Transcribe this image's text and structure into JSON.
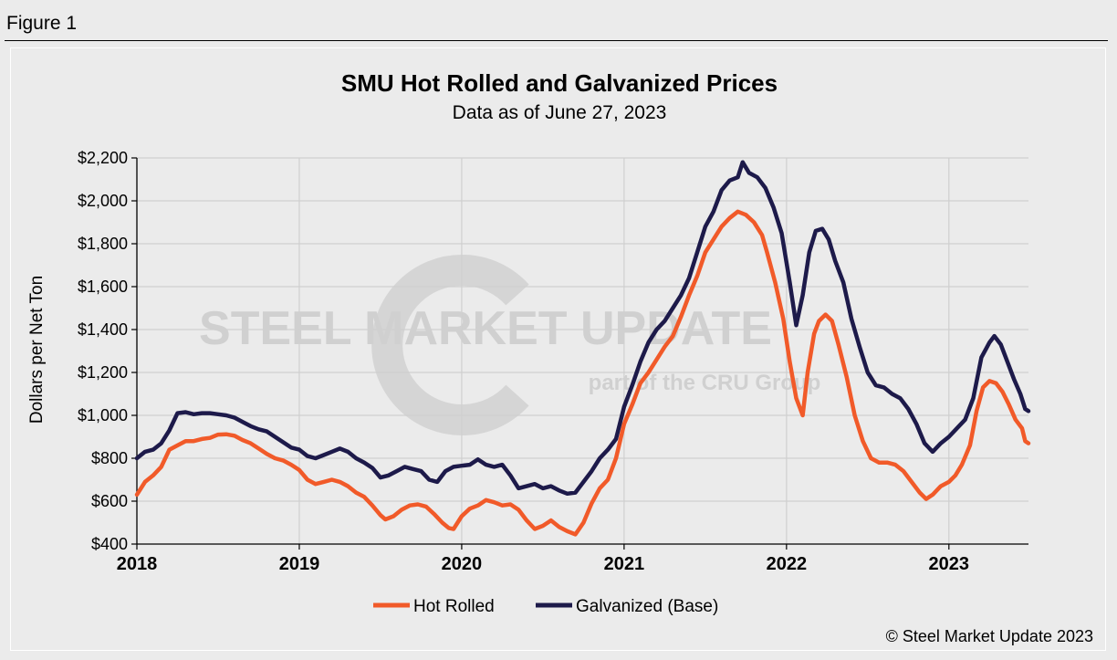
{
  "figure_label": "Figure 1",
  "copyright": "© Steel Market Update 2023",
  "watermark": {
    "main": "STEEL MARKET UPDATE",
    "sub": "part of the CRU Group"
  },
  "colors": {
    "hot_rolled": "#f15a29",
    "galvanized": "#1d1a4a",
    "grid": "#cfcfcf",
    "background": "#ebebeb"
  },
  "chart_data": {
    "type": "line",
    "title": "SMU Hot Rolled and Galvanized Prices",
    "subtitle": "Data as of June 27, 2023",
    "ylabel": "Dollars per Net Ton",
    "xlabel": "",
    "ylim": [
      400,
      2200
    ],
    "yticks": [
      {
        "value": 400,
        "label": "$400"
      },
      {
        "value": 600,
        "label": "$600"
      },
      {
        "value": 800,
        "label": "$800"
      },
      {
        "value": 1000,
        "label": "$1,000"
      },
      {
        "value": 1200,
        "label": "$1,200"
      },
      {
        "value": 1400,
        "label": "$1,400"
      },
      {
        "value": 1600,
        "label": "$1,600"
      },
      {
        "value": 1800,
        "label": "$1,800"
      },
      {
        "value": 2000,
        "label": "$2,000"
      },
      {
        "value": 2200,
        "label": "$2,200"
      }
    ],
    "xlim": [
      2018.0,
      2023.49
    ],
    "xticks": [
      {
        "value": 2018,
        "label": "2018"
      },
      {
        "value": 2019,
        "label": "2019"
      },
      {
        "value": 2020,
        "label": "2020"
      },
      {
        "value": 2021,
        "label": "2021"
      },
      {
        "value": 2022,
        "label": "2022"
      },
      {
        "value": 2023,
        "label": "2023"
      }
    ],
    "grid": true,
    "legend": "bottom-center",
    "series": [
      {
        "name": "Hot Rolled",
        "color": "#f15a29",
        "points": [
          [
            2018.0,
            630
          ],
          [
            2018.05,
            690
          ],
          [
            2018.1,
            720
          ],
          [
            2018.15,
            760
          ],
          [
            2018.2,
            840
          ],
          [
            2018.25,
            860
          ],
          [
            2018.3,
            880
          ],
          [
            2018.35,
            880
          ],
          [
            2018.4,
            890
          ],
          [
            2018.45,
            895
          ],
          [
            2018.5,
            910
          ],
          [
            2018.55,
            912
          ],
          [
            2018.6,
            905
          ],
          [
            2018.65,
            885
          ],
          [
            2018.7,
            870
          ],
          [
            2018.75,
            845
          ],
          [
            2018.8,
            820
          ],
          [
            2018.85,
            800
          ],
          [
            2018.9,
            790
          ],
          [
            2018.95,
            770
          ],
          [
            2019.0,
            745
          ],
          [
            2019.05,
            700
          ],
          [
            2019.1,
            680
          ],
          [
            2019.15,
            690
          ],
          [
            2019.2,
            700
          ],
          [
            2019.25,
            690
          ],
          [
            2019.3,
            670
          ],
          [
            2019.35,
            640
          ],
          [
            2019.4,
            620
          ],
          [
            2019.45,
            580
          ],
          [
            2019.5,
            535
          ],
          [
            2019.53,
            515
          ],
          [
            2019.58,
            530
          ],
          [
            2019.63,
            560
          ],
          [
            2019.68,
            580
          ],
          [
            2019.73,
            585
          ],
          [
            2019.78,
            575
          ],
          [
            2019.83,
            540
          ],
          [
            2019.88,
            500
          ],
          [
            2019.92,
            475
          ],
          [
            2019.95,
            470
          ],
          [
            2020.0,
            530
          ],
          [
            2020.05,
            565
          ],
          [
            2020.1,
            580
          ],
          [
            2020.15,
            605
          ],
          [
            2020.2,
            595
          ],
          [
            2020.25,
            580
          ],
          [
            2020.3,
            585
          ],
          [
            2020.35,
            560
          ],
          [
            2020.4,
            510
          ],
          [
            2020.45,
            470
          ],
          [
            2020.5,
            485
          ],
          [
            2020.55,
            510
          ],
          [
            2020.6,
            480
          ],
          [
            2020.65,
            460
          ],
          [
            2020.7,
            445
          ],
          [
            2020.75,
            500
          ],
          [
            2020.8,
            590
          ],
          [
            2020.85,
            660
          ],
          [
            2020.9,
            700
          ],
          [
            2020.95,
            800
          ],
          [
            2021.0,
            960
          ],
          [
            2021.05,
            1050
          ],
          [
            2021.1,
            1150
          ],
          [
            2021.15,
            1200
          ],
          [
            2021.2,
            1260
          ],
          [
            2021.25,
            1320
          ],
          [
            2021.3,
            1370
          ],
          [
            2021.35,
            1460
          ],
          [
            2021.4,
            1560
          ],
          [
            2021.45,
            1650
          ],
          [
            2021.5,
            1760
          ],
          [
            2021.55,
            1820
          ],
          [
            2021.6,
            1880
          ],
          [
            2021.65,
            1920
          ],
          [
            2021.7,
            1950
          ],
          [
            2021.75,
            1935
          ],
          [
            2021.8,
            1900
          ],
          [
            2021.85,
            1840
          ],
          [
            2021.88,
            1760
          ],
          [
            2021.93,
            1620
          ],
          [
            2021.98,
            1450
          ],
          [
            2022.02,
            1250
          ],
          [
            2022.06,
            1080
          ],
          [
            2022.1,
            1000
          ],
          [
            2022.13,
            1200
          ],
          [
            2022.17,
            1380
          ],
          [
            2022.2,
            1440
          ],
          [
            2022.24,
            1470
          ],
          [
            2022.28,
            1440
          ],
          [
            2022.32,
            1330
          ],
          [
            2022.37,
            1180
          ],
          [
            2022.42,
            1000
          ],
          [
            2022.47,
            880
          ],
          [
            2022.52,
            800
          ],
          [
            2022.57,
            780
          ],
          [
            2022.62,
            780
          ],
          [
            2022.67,
            770
          ],
          [
            2022.72,
            740
          ],
          [
            2022.77,
            690
          ],
          [
            2022.82,
            640
          ],
          [
            2022.86,
            610
          ],
          [
            2022.9,
            630
          ],
          [
            2022.95,
            670
          ],
          [
            2023.0,
            690
          ],
          [
            2023.04,
            720
          ],
          [
            2023.08,
            770
          ],
          [
            2023.13,
            860
          ],
          [
            2023.17,
            1020
          ],
          [
            2023.21,
            1130
          ],
          [
            2023.25,
            1160
          ],
          [
            2023.29,
            1150
          ],
          [
            2023.33,
            1110
          ],
          [
            2023.37,
            1050
          ],
          [
            2023.41,
            980
          ],
          [
            2023.45,
            940
          ],
          [
            2023.47,
            880
          ],
          [
            2023.49,
            870
          ]
        ]
      },
      {
        "name": "Galvanized (Base)",
        "color": "#1d1a4a",
        "points": [
          [
            2018.0,
            800
          ],
          [
            2018.05,
            830
          ],
          [
            2018.1,
            840
          ],
          [
            2018.15,
            870
          ],
          [
            2018.2,
            930
          ],
          [
            2018.25,
            1010
          ],
          [
            2018.3,
            1015
          ],
          [
            2018.35,
            1005
          ],
          [
            2018.4,
            1010
          ],
          [
            2018.45,
            1010
          ],
          [
            2018.5,
            1005
          ],
          [
            2018.55,
            1000
          ],
          [
            2018.6,
            990
          ],
          [
            2018.65,
            970
          ],
          [
            2018.7,
            950
          ],
          [
            2018.75,
            935
          ],
          [
            2018.8,
            925
          ],
          [
            2018.85,
            900
          ],
          [
            2018.9,
            875
          ],
          [
            2018.95,
            850
          ],
          [
            2019.0,
            840
          ],
          [
            2019.05,
            810
          ],
          [
            2019.1,
            800
          ],
          [
            2019.15,
            815
          ],
          [
            2019.2,
            830
          ],
          [
            2019.25,
            845
          ],
          [
            2019.3,
            830
          ],
          [
            2019.35,
            800
          ],
          [
            2019.4,
            780
          ],
          [
            2019.45,
            755
          ],
          [
            2019.5,
            710
          ],
          [
            2019.55,
            720
          ],
          [
            2019.6,
            740
          ],
          [
            2019.65,
            760
          ],
          [
            2019.7,
            750
          ],
          [
            2019.75,
            740
          ],
          [
            2019.8,
            700
          ],
          [
            2019.85,
            690
          ],
          [
            2019.9,
            740
          ],
          [
            2019.95,
            760
          ],
          [
            2020.0,
            765
          ],
          [
            2020.05,
            770
          ],
          [
            2020.1,
            795
          ],
          [
            2020.15,
            770
          ],
          [
            2020.2,
            760
          ],
          [
            2020.25,
            770
          ],
          [
            2020.3,
            720
          ],
          [
            2020.35,
            660
          ],
          [
            2020.4,
            670
          ],
          [
            2020.45,
            680
          ],
          [
            2020.5,
            660
          ],
          [
            2020.55,
            670
          ],
          [
            2020.6,
            650
          ],
          [
            2020.65,
            635
          ],
          [
            2020.7,
            640
          ],
          [
            2020.75,
            690
          ],
          [
            2020.8,
            740
          ],
          [
            2020.85,
            800
          ],
          [
            2020.9,
            840
          ],
          [
            2020.95,
            890
          ],
          [
            2021.0,
            1040
          ],
          [
            2021.05,
            1140
          ],
          [
            2021.1,
            1250
          ],
          [
            2021.15,
            1340
          ],
          [
            2021.2,
            1400
          ],
          [
            2021.25,
            1440
          ],
          [
            2021.3,
            1500
          ],
          [
            2021.35,
            1560
          ],
          [
            2021.4,
            1640
          ],
          [
            2021.45,
            1760
          ],
          [
            2021.5,
            1880
          ],
          [
            2021.55,
            1950
          ],
          [
            2021.6,
            2050
          ],
          [
            2021.65,
            2095
          ],
          [
            2021.7,
            2110
          ],
          [
            2021.73,
            2180
          ],
          [
            2021.77,
            2130
          ],
          [
            2021.82,
            2110
          ],
          [
            2021.87,
            2060
          ],
          [
            2021.92,
            1970
          ],
          [
            2021.97,
            1850
          ],
          [
            2022.02,
            1620
          ],
          [
            2022.06,
            1420
          ],
          [
            2022.1,
            1560
          ],
          [
            2022.14,
            1760
          ],
          [
            2022.18,
            1860
          ],
          [
            2022.22,
            1870
          ],
          [
            2022.26,
            1820
          ],
          [
            2022.3,
            1720
          ],
          [
            2022.35,
            1620
          ],
          [
            2022.4,
            1450
          ],
          [
            2022.45,
            1320
          ],
          [
            2022.5,
            1200
          ],
          [
            2022.55,
            1140
          ],
          [
            2022.6,
            1130
          ],
          [
            2022.65,
            1100
          ],
          [
            2022.7,
            1080
          ],
          [
            2022.75,
            1030
          ],
          [
            2022.8,
            960
          ],
          [
            2022.85,
            870
          ],
          [
            2022.9,
            830
          ],
          [
            2022.95,
            870
          ],
          [
            2023.0,
            900
          ],
          [
            2023.05,
            940
          ],
          [
            2023.1,
            980
          ],
          [
            2023.15,
            1080
          ],
          [
            2023.2,
            1270
          ],
          [
            2023.25,
            1340
          ],
          [
            2023.28,
            1370
          ],
          [
            2023.32,
            1330
          ],
          [
            2023.36,
            1250
          ],
          [
            2023.4,
            1170
          ],
          [
            2023.44,
            1100
          ],
          [
            2023.47,
            1030
          ],
          [
            2023.49,
            1020
          ]
        ]
      }
    ]
  }
}
